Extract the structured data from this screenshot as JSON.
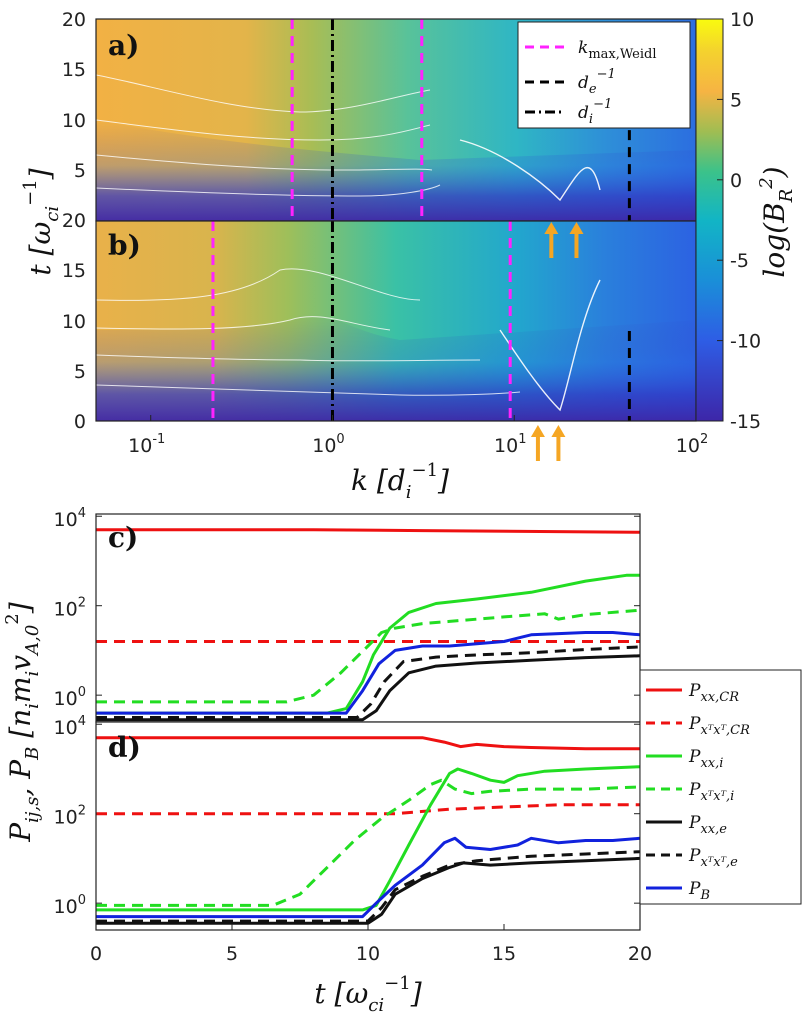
{
  "chart_data": [
    {
      "id": "a",
      "type": "heatmap",
      "panel_label": "a)",
      "xscale": "log",
      "xlim": [
        0.05,
        100
      ],
      "ylim": [
        0,
        20
      ],
      "yticks": [
        "20",
        "15",
        "10",
        "5"
      ],
      "kmax_weidl": [
        0.6,
        3.1
      ],
      "de_inv": 43,
      "di_inv": 1,
      "arrows_k": [
        16,
        22
      ],
      "legend": {
        "position": "top-right",
        "entries": [
          {
            "label": "k_max,Weidl",
            "color": "#ff22ff",
            "style": "dashed"
          },
          {
            "label": "d_e^-1",
            "color": "#000000",
            "style": "dashed"
          },
          {
            "label": "d_i^-1",
            "color": "#000000",
            "style": "dashdot"
          }
        ]
      }
    },
    {
      "id": "b",
      "type": "heatmap",
      "panel_label": "b)",
      "xscale": "log",
      "xlim": [
        0.05,
        100
      ],
      "ylim": [
        0,
        20
      ],
      "yticks": [
        "20",
        "15",
        "10",
        "5",
        "0"
      ],
      "kmax_weidl": [
        0.22,
        9.5
      ],
      "de_inv": 43,
      "di_inv": 1,
      "arrows_k": [
        13.5,
        17.5
      ],
      "xticks": [
        {
          "k": 0.1,
          "base": "10",
          "exp": "-1"
        },
        {
          "k": 1,
          "base": "10",
          "exp": "0"
        },
        {
          "k": 10,
          "base": "10",
          "exp": "1"
        },
        {
          "k": 100,
          "base": "10",
          "exp": "2"
        }
      ],
      "xlabel": "k [d_i^-1]",
      "ylabel_shared": "t [ω_ci^-1]"
    },
    {
      "id": "colorbar",
      "type": "colorbar",
      "label": "log(B_R^2)",
      "range": [
        -15,
        10
      ],
      "ticks": [
        "10",
        "5",
        "0",
        "-5",
        "-10",
        "-15"
      ]
    },
    {
      "id": "c",
      "type": "line",
      "panel_label": "c)",
      "yscale": "log",
      "ylim_log10": [
        -0.6,
        4.05
      ],
      "xlim": [
        0,
        20
      ],
      "yticks": [
        {
          "base": "10",
          "exp": "4"
        },
        {
          "base": "10",
          "exp": "2"
        },
        {
          "base": "10",
          "exp": "0"
        }
      ],
      "series": [
        {
          "name": "P_xx,CR",
          "color": "#ee1111",
          "dash": false,
          "x": [
            0,
            8,
            12,
            20
          ],
          "log10y": [
            3.7,
            3.7,
            3.68,
            3.64
          ]
        },
        {
          "name": "P_xTxT,CR",
          "color": "#ee1111",
          "dash": true,
          "x": [
            0,
            20
          ],
          "log10y": [
            1.2,
            1.2
          ]
        },
        {
          "name": "P_xx,i",
          "color": "#22dd22",
          "dash": false,
          "x": [
            0,
            8.5,
            9.2,
            9.8,
            10.2,
            10.8,
            11.5,
            12.5,
            14,
            16,
            18,
            19.5,
            20
          ],
          "log10y": [
            -0.4,
            -0.4,
            -0.3,
            0.3,
            0.9,
            1.5,
            1.85,
            2.05,
            2.15,
            2.3,
            2.55,
            2.68,
            2.68
          ]
        },
        {
          "name": "P_xTxT,i",
          "color": "#22dd22",
          "dash": true,
          "x": [
            0,
            7,
            8,
            9,
            10,
            10.5,
            11,
            12,
            13,
            15,
            16.5,
            17,
            18,
            20
          ],
          "log10y": [
            -0.15,
            -0.15,
            0.0,
            0.5,
            1.1,
            1.4,
            1.5,
            1.6,
            1.65,
            1.75,
            1.82,
            1.7,
            1.8,
            1.9
          ]
        },
        {
          "name": "P_xx,e",
          "color": "#111111",
          "dash": false,
          "x": [
            0,
            9.8,
            10.3,
            10.8,
            11.5,
            12.5,
            14,
            16,
            18,
            20
          ],
          "log10y": [
            -0.55,
            -0.55,
            -0.35,
            0.1,
            0.5,
            0.65,
            0.72,
            0.78,
            0.84,
            0.88
          ]
        },
        {
          "name": "P_xTxT,e",
          "color": "#111111",
          "dash": true,
          "x": [
            0,
            9.6,
            10.1,
            10.6,
            11.3,
            12.5,
            14,
            16,
            18,
            20
          ],
          "log10y": [
            -0.5,
            -0.5,
            -0.2,
            0.3,
            0.75,
            0.85,
            0.9,
            0.95,
            1.02,
            1.08
          ]
        },
        {
          "name": "P_B",
          "color": "#1122dd",
          "dash": false,
          "x": [
            0,
            9.2,
            9.8,
            10.4,
            11,
            12,
            13,
            14,
            15,
            16,
            18,
            19,
            20
          ],
          "log10y": [
            -0.4,
            -0.4,
            0.1,
            0.7,
            1.0,
            1.1,
            1.1,
            1.15,
            1.2,
            1.35,
            1.4,
            1.4,
            1.35
          ]
        }
      ]
    },
    {
      "id": "d",
      "type": "line",
      "panel_label": "d)",
      "yscale": "log",
      "ylim_log10": [
        -0.6,
        4.05
      ],
      "xlim": [
        0,
        20
      ],
      "yticks": [
        {
          "base": "10",
          "exp": "4"
        },
        {
          "base": "10",
          "exp": "2"
        },
        {
          "base": "10",
          "exp": "0"
        }
      ],
      "xticks": [
        "0",
        "5",
        "10",
        "15",
        "20"
      ],
      "xlabel": "t [ω_ci^-1]",
      "ylabel_shared": "P_ij,s, P_B [n_i m_i v_A,0^2]",
      "series": [
        {
          "name": "P_xx,CR",
          "color": "#ee1111",
          "dash": false,
          "x": [
            0,
            12,
            12.8,
            13.4,
            14,
            15,
            16,
            18,
            20
          ],
          "log10y": [
            3.7,
            3.7,
            3.6,
            3.5,
            3.55,
            3.5,
            3.48,
            3.45,
            3.45
          ]
        },
        {
          "name": "P_xTxT,CR",
          "color": "#ee1111",
          "dash": true,
          "x": [
            0,
            11,
            13,
            15,
            17,
            20
          ],
          "log10y": [
            2.0,
            2.0,
            2.1,
            2.15,
            2.2,
            2.2
          ]
        },
        {
          "name": "P_xx,i",
          "color": "#22dd22",
          "dash": false,
          "x": [
            0,
            9.8,
            10.3,
            10.8,
            11.5,
            12.3,
            13,
            13.3,
            13.8,
            14.5,
            15,
            15.5,
            16.5,
            18,
            20
          ],
          "log10y": [
            -0.15,
            -0.15,
            -0.05,
            0.5,
            1.3,
            2.2,
            2.9,
            3.0,
            2.9,
            2.75,
            2.7,
            2.85,
            2.95,
            3.0,
            3.05
          ]
        },
        {
          "name": "P_xTxT,i",
          "color": "#22dd22",
          "dash": true,
          "x": [
            0,
            6.5,
            7.5,
            8.5,
            9.5,
            10.5,
            11.5,
            12.3,
            12.7,
            13.2,
            13.8,
            14.5,
            16,
            18,
            20
          ],
          "log10y": [
            -0.05,
            -0.05,
            0.2,
            0.8,
            1.4,
            1.9,
            2.3,
            2.65,
            2.75,
            2.55,
            2.45,
            2.5,
            2.55,
            2.55,
            2.6
          ]
        },
        {
          "name": "P_xx,e",
          "color": "#111111",
          "dash": false,
          "x": [
            0,
            10,
            10.5,
            11,
            12,
            13,
            13.5,
            14.5,
            16,
            18,
            20
          ],
          "log10y": [
            -0.45,
            -0.45,
            -0.25,
            0.2,
            0.55,
            0.8,
            0.9,
            0.85,
            0.9,
            0.95,
            1.0
          ]
        },
        {
          "name": "P_xTxT,e",
          "color": "#111111",
          "dash": true,
          "x": [
            0,
            10,
            10.5,
            11,
            12,
            13,
            14,
            16,
            18,
            20
          ],
          "log10y": [
            -0.4,
            -0.4,
            -0.1,
            0.3,
            0.6,
            0.85,
            0.95,
            1.05,
            1.1,
            1.15
          ]
        },
        {
          "name": "P_B",
          "color": "#1122dd",
          "dash": false,
          "x": [
            0,
            9.8,
            10.3,
            11,
            12,
            12.8,
            13.2,
            13.6,
            14.5,
            15.5,
            16,
            17,
            18,
            19,
            20
          ],
          "log10y": [
            -0.3,
            -0.3,
            0.0,
            0.4,
            0.85,
            1.35,
            1.45,
            1.25,
            1.2,
            1.3,
            1.45,
            1.35,
            1.4,
            1.4,
            1.45
          ]
        }
      ]
    }
  ],
  "legend_c": {
    "position": "right",
    "entries": [
      {
        "label": "P_xx,CR",
        "main": "P",
        "sub": "xx,CR",
        "color": "#ee1111",
        "dash": false
      },
      {
        "label": "P_xTxT,CR",
        "main": "P",
        "sub": "xᵀxᵀ,CR",
        "color": "#ee1111",
        "dash": true
      },
      {
        "label": "P_xx,i",
        "main": "P",
        "sub": "xx,i",
        "color": "#22dd22",
        "dash": false
      },
      {
        "label": "P_xTxT,i",
        "main": "P",
        "sub": "xᵀxᵀ,i",
        "color": "#22dd22",
        "dash": true
      },
      {
        "label": "P_xx,e",
        "main": "P",
        "sub": "xx,e",
        "color": "#111111",
        "dash": false
      },
      {
        "label": "P_xTxT,e",
        "main": "P",
        "sub": "xᵀxᵀ,e",
        "color": "#111111",
        "dash": true
      },
      {
        "label": "P_B",
        "main": "P",
        "sub": "B",
        "color": "#1122dd",
        "dash": false
      }
    ]
  }
}
